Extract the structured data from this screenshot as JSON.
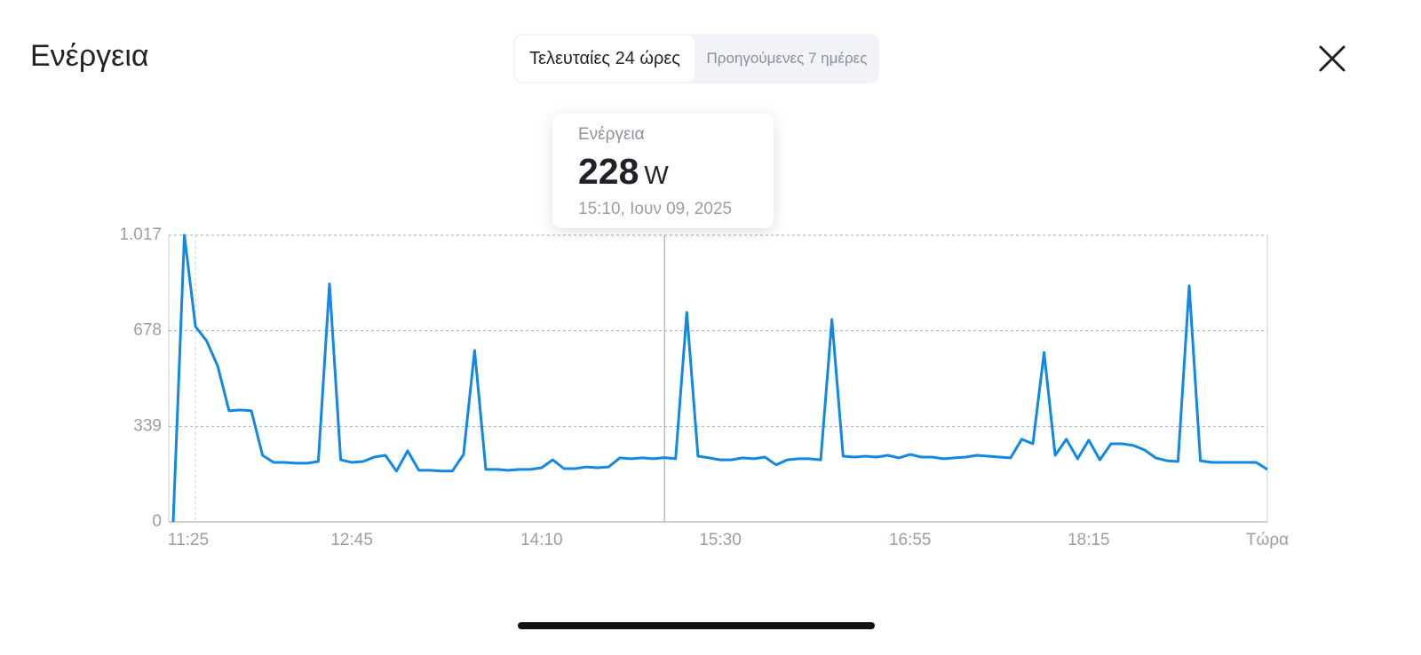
{
  "header": {
    "title": "Ενέργεια"
  },
  "tabs": [
    "Τελευταίες 24 ώρες",
    "Προηγούμενες 7 ημέρες"
  ],
  "tooltip": {
    "label": "Ενέργεια",
    "value": 228,
    "unit": "W",
    "time": "15:10, Ιουν 09, 2025"
  },
  "chart_data": {
    "type": "line",
    "color": "#1088e4",
    "grid": true,
    "categories": [
      "11:25",
      null,
      null,
      null,
      null,
      null,
      null,
      null,
      null,
      null,
      null,
      null,
      null,
      null,
      null,
      null,
      "12:45",
      null,
      null,
      null,
      null,
      null,
      null,
      null,
      null,
      null,
      null,
      null,
      null,
      null,
      null,
      null,
      null,
      "14:10",
      null,
      null,
      null,
      null,
      null,
      null,
      null,
      null,
      null,
      null,
      null,
      null,
      null,
      null,
      null,
      "15:30",
      null,
      null,
      null,
      null,
      null,
      null,
      null,
      null,
      null,
      null,
      null,
      null,
      null,
      null,
      null,
      null,
      "16:55",
      null,
      null,
      null,
      null,
      null,
      null,
      null,
      null,
      null,
      null,
      null,
      null,
      null,
      null,
      null,
      "18:15",
      null,
      null,
      null,
      null,
      null,
      null,
      null,
      null,
      null,
      null,
      null,
      null,
      null,
      null,
      null,
      "Τώρα"
    ],
    "values": [
      0,
      1017,
      693,
      642,
      551,
      394,
      397,
      394,
      236,
      211,
      211,
      208,
      208,
      214,
      844,
      220,
      211,
      214,
      230,
      236,
      180,
      252,
      183,
      183,
      180,
      180,
      239,
      608,
      186,
      186,
      183,
      186,
      186,
      192,
      220,
      189,
      189,
      195,
      192,
      195,
      227,
      224,
      227,
      224,
      228,
      224,
      743,
      233,
      227,
      220,
      220,
      227,
      224,
      230,
      202,
      220,
      224,
      224,
      220,
      718,
      233,
      230,
      233,
      230,
      236,
      227,
      239,
      230,
      230,
      224,
      227,
      230,
      236,
      233,
      230,
      227,
      293,
      277,
      601,
      236,
      293,
      224,
      290,
      220,
      277,
      277,
      271,
      255,
      227,
      217,
      214,
      838,
      217,
      211,
      211,
      211,
      211,
      211,
      186
    ],
    "ylim": [
      0,
      1017
    ],
    "yticks": [
      0,
      339,
      678,
      {
        "value": 1017,
        "label": "1.017"
      }
    ]
  }
}
